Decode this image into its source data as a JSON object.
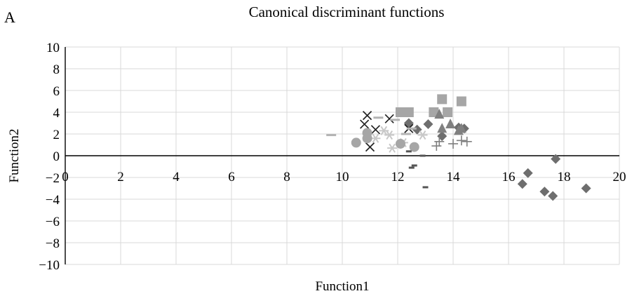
{
  "chart_data": {
    "type": "scatter",
    "panel_label": "A",
    "title": "Canonical discriminant functions",
    "xlabel": "Function1",
    "ylabel": "Function2",
    "xlim": [
      0,
      20
    ],
    "ylim": [
      -10,
      10
    ],
    "xticks": [
      0,
      2,
      4,
      6,
      8,
      10,
      12,
      14,
      16,
      18,
      20
    ],
    "yticks": [
      10,
      8,
      6,
      4,
      2,
      0,
      -2,
      -4,
      -6,
      -8,
      -10
    ],
    "xtick_labels": [
      "0",
      "2",
      "4",
      "6",
      "8",
      "10",
      "12",
      "14",
      "16",
      "18",
      "20"
    ],
    "ytick_labels": [
      "10",
      "8",
      "6",
      "4",
      "2",
      "0",
      "−2",
      "−4",
      "−6",
      "−8",
      "−10"
    ],
    "grid": true,
    "legend": "none",
    "series": [
      {
        "marker": "diamond",
        "color": "#6e6e6e",
        "points": [
          [
            16.5,
            -2.6
          ],
          [
            16.7,
            -1.6
          ],
          [
            17.3,
            -3.3
          ],
          [
            17.6,
            -3.7
          ],
          [
            17.7,
            -0.3
          ],
          [
            18.8,
            -3.0
          ],
          [
            12.4,
            3.0
          ],
          [
            12.7,
            2.4
          ],
          [
            13.1,
            2.9
          ],
          [
            13.6,
            1.8
          ],
          [
            14.2,
            2.6
          ],
          [
            14.4,
            2.5
          ]
        ]
      },
      {
        "marker": "square",
        "color": "#a6a6a6",
        "points": [
          [
            12.1,
            4.0
          ],
          [
            12.4,
            4.0
          ],
          [
            13.3,
            4.0
          ],
          [
            13.6,
            5.2
          ],
          [
            13.8,
            4.0
          ],
          [
            14.3,
            5.0
          ]
        ]
      },
      {
        "marker": "triangle",
        "color": "#808080",
        "points": [
          [
            13.5,
            3.8
          ],
          [
            13.6,
            2.5
          ],
          [
            13.9,
            2.9
          ],
          [
            14.2,
            2.3
          ],
          [
            14.3,
            2.5
          ]
        ]
      },
      {
        "marker": "x",
        "color": "#222222",
        "points": [
          [
            10.8,
            2.9
          ],
          [
            10.9,
            3.7
          ],
          [
            11.0,
            0.8
          ],
          [
            11.2,
            2.4
          ],
          [
            11.7,
            3.4
          ],
          [
            12.4,
            2.5
          ]
        ]
      },
      {
        "marker": "asterisk",
        "color": "#c8c8c8",
        "points": [
          [
            10.9,
            2.0
          ],
          [
            11.2,
            1.6
          ],
          [
            11.5,
            2.3
          ],
          [
            11.7,
            1.9
          ],
          [
            11.8,
            0.7
          ],
          [
            12.2,
            1.2
          ],
          [
            12.9,
            1.9
          ]
        ]
      },
      {
        "marker": "circle",
        "color": "#a6a6a6",
        "points": [
          [
            10.5,
            1.2
          ],
          [
            10.9,
            2.1
          ],
          [
            10.9,
            1.6
          ],
          [
            12.1,
            1.1
          ],
          [
            12.6,
            0.8
          ]
        ]
      },
      {
        "marker": "plus",
        "color": "#808080",
        "points": [
          [
            13.4,
            0.9
          ],
          [
            13.5,
            1.3
          ],
          [
            14.0,
            1.1
          ],
          [
            14.3,
            1.4
          ],
          [
            14.5,
            1.3
          ]
        ]
      },
      {
        "marker": "dash",
        "color": "#b3b3b3",
        "points": [
          [
            9.6,
            1.9
          ],
          [
            11.3,
            3.5
          ],
          [
            11.9,
            3.3
          ],
          [
            12.3,
            2.0
          ],
          [
            12.5,
            2.5
          ]
        ]
      },
      {
        "marker": "short-dash",
        "color": "#555555",
        "points": [
          [
            12.4,
            0.4
          ],
          [
            12.5,
            -1.1
          ],
          [
            12.6,
            -0.9
          ],
          [
            12.9,
            0.0
          ],
          [
            13.0,
            -2.9
          ]
        ]
      }
    ]
  }
}
